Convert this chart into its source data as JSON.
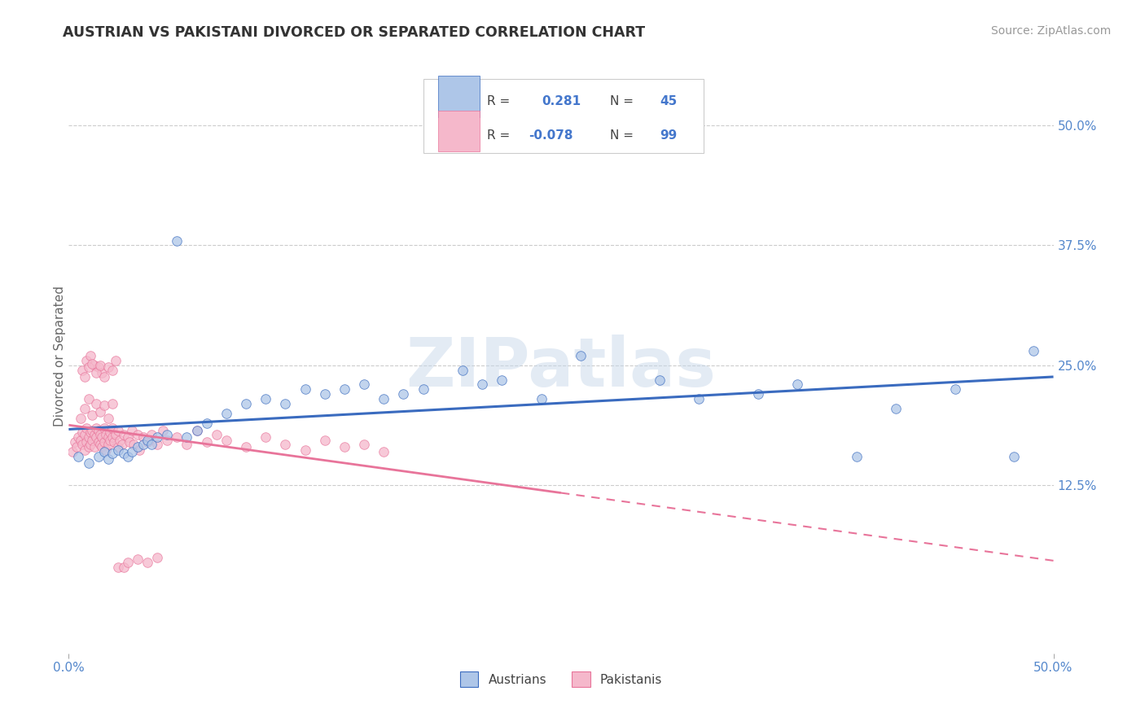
{
  "title": "AUSTRIAN VS PAKISTANI DIVORCED OR SEPARATED CORRELATION CHART",
  "source_text": "Source: ZipAtlas.com",
  "ylabel": "Divorced or Separated",
  "xlim": [
    0.0,
    0.5
  ],
  "ylim": [
    -0.05,
    0.57
  ],
  "x_ticks": [
    0.0,
    0.5
  ],
  "x_tick_labels": [
    "0.0%",
    "50.0%"
  ],
  "y_ticks": [
    0.125,
    0.25,
    0.375,
    0.5
  ],
  "y_tick_labels": [
    "12.5%",
    "25.0%",
    "37.5%",
    "50.0%"
  ],
  "blue_R": 0.281,
  "blue_N": 45,
  "pink_R": -0.078,
  "pink_N": 99,
  "blue_color": "#aec6e8",
  "pink_color": "#f5b8cb",
  "blue_line_color": "#3a6bbf",
  "pink_line_color": "#e8749a",
  "watermark": "ZIPatlas",
  "legend_austrians": "Austrians",
  "legend_pakistanis": "Pakistanis",
  "blue_scatter_x": [
    0.005,
    0.01,
    0.015,
    0.018,
    0.02,
    0.022,
    0.025,
    0.028,
    0.03,
    0.032,
    0.035,
    0.038,
    0.04,
    0.042,
    0.045,
    0.05,
    0.055,
    0.06,
    0.065,
    0.07,
    0.08,
    0.09,
    0.1,
    0.11,
    0.12,
    0.13,
    0.14,
    0.15,
    0.16,
    0.17,
    0.18,
    0.2,
    0.21,
    0.22,
    0.24,
    0.26,
    0.3,
    0.32,
    0.35,
    0.37,
    0.4,
    0.42,
    0.45,
    0.48,
    0.49
  ],
  "blue_scatter_y": [
    0.155,
    0.148,
    0.155,
    0.16,
    0.152,
    0.158,
    0.162,
    0.158,
    0.155,
    0.16,
    0.165,
    0.168,
    0.172,
    0.168,
    0.175,
    0.178,
    0.38,
    0.175,
    0.182,
    0.19,
    0.2,
    0.21,
    0.215,
    0.21,
    0.225,
    0.22,
    0.225,
    0.23,
    0.215,
    0.22,
    0.225,
    0.245,
    0.23,
    0.235,
    0.215,
    0.26,
    0.235,
    0.215,
    0.22,
    0.23,
    0.155,
    0.205,
    0.225,
    0.155,
    0.265
  ],
  "pink_scatter_x": [
    0.002,
    0.003,
    0.004,
    0.005,
    0.006,
    0.007,
    0.007,
    0.008,
    0.008,
    0.009,
    0.009,
    0.01,
    0.01,
    0.011,
    0.011,
    0.012,
    0.012,
    0.013,
    0.013,
    0.014,
    0.014,
    0.015,
    0.015,
    0.016,
    0.016,
    0.017,
    0.017,
    0.018,
    0.018,
    0.019,
    0.019,
    0.02,
    0.02,
    0.021,
    0.021,
    0.022,
    0.022,
    0.023,
    0.024,
    0.025,
    0.025,
    0.026,
    0.027,
    0.028,
    0.03,
    0.031,
    0.032,
    0.033,
    0.035,
    0.036,
    0.038,
    0.04,
    0.042,
    0.045,
    0.048,
    0.05,
    0.055,
    0.06,
    0.065,
    0.07,
    0.075,
    0.08,
    0.09,
    0.1,
    0.11,
    0.12,
    0.13,
    0.14,
    0.15,
    0.16,
    0.007,
    0.009,
    0.011,
    0.013,
    0.015,
    0.017,
    0.008,
    0.01,
    0.012,
    0.014,
    0.016,
    0.018,
    0.02,
    0.022,
    0.024,
    0.006,
    0.008,
    0.01,
    0.012,
    0.014,
    0.016,
    0.018,
    0.02,
    0.022,
    0.025,
    0.028,
    0.03,
    0.035,
    0.04,
    0.045
  ],
  "pink_scatter_y": [
    0.16,
    0.17,
    0.165,
    0.175,
    0.172,
    0.168,
    0.18,
    0.162,
    0.178,
    0.17,
    0.185,
    0.165,
    0.175,
    0.18,
    0.168,
    0.182,
    0.172,
    0.178,
    0.165,
    0.185,
    0.175,
    0.17,
    0.182,
    0.168,
    0.178,
    0.175,
    0.165,
    0.185,
    0.17,
    0.178,
    0.162,
    0.175,
    0.168,
    0.18,
    0.172,
    0.175,
    0.185,
    0.17,
    0.178,
    0.165,
    0.182,
    0.172,
    0.168,
    0.178,
    0.175,
    0.17,
    0.182,
    0.168,
    0.178,
    0.162,
    0.175,
    0.17,
    0.178,
    0.168,
    0.182,
    0.172,
    0.175,
    0.168,
    0.182,
    0.17,
    0.178,
    0.172,
    0.165,
    0.175,
    0.168,
    0.162,
    0.172,
    0.165,
    0.168,
    0.16,
    0.245,
    0.255,
    0.26,
    0.25,
    0.248,
    0.242,
    0.238,
    0.248,
    0.252,
    0.242,
    0.25,
    0.238,
    0.248,
    0.245,
    0.255,
    0.195,
    0.205,
    0.215,
    0.198,
    0.21,
    0.202,
    0.208,
    0.195,
    0.21,
    0.04,
    0.04,
    0.045,
    0.048,
    0.045,
    0.05
  ]
}
